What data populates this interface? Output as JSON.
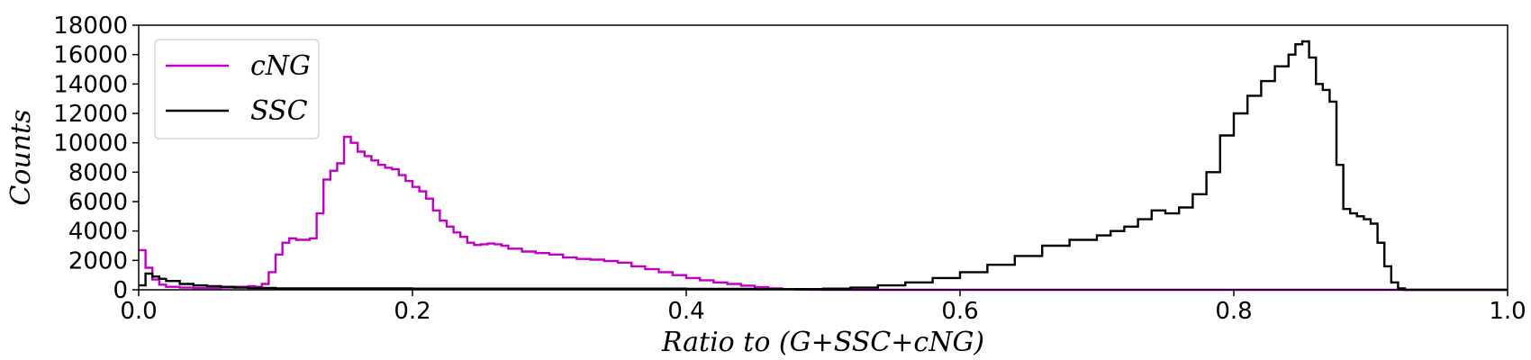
{
  "chart_data": {
    "type": "line",
    "style": "step histogram",
    "xlabel": "Ratio  to  (G+SSC+cNG)",
    "ylabel": "Counts",
    "xlim": [
      0.0,
      1.0
    ],
    "ylim": [
      0,
      18000
    ],
    "xticks": [
      0.0,
      0.2,
      0.4,
      0.6,
      0.8,
      1.0
    ],
    "xtick_labels": [
      "0.0",
      "0.2",
      "0.4",
      "0.6",
      "0.8",
      "1.0"
    ],
    "yticks": [
      0,
      2000,
      4000,
      6000,
      8000,
      10000,
      12000,
      14000,
      16000,
      18000
    ],
    "ytick_labels": [
      "0",
      "2000",
      "4000",
      "6000",
      "8000",
      "10000",
      "12000",
      "14000",
      "16000",
      "18000"
    ],
    "grid": false,
    "legend_position": "top-left",
    "series": [
      {
        "name": "cNG",
        "color": "#c000c8",
        "points": [
          [
            0.0,
            2700
          ],
          [
            0.005,
            1500
          ],
          [
            0.01,
            700
          ],
          [
            0.015,
            350
          ],
          [
            0.02,
            200
          ],
          [
            0.03,
            150
          ],
          [
            0.04,
            120
          ],
          [
            0.05,
            120
          ],
          [
            0.06,
            150
          ],
          [
            0.07,
            200
          ],
          [
            0.08,
            250
          ],
          [
            0.085,
            200
          ],
          [
            0.09,
            400
          ],
          [
            0.095,
            1200
          ],
          [
            0.1,
            2400
          ],
          [
            0.105,
            3200
          ],
          [
            0.11,
            3500
          ],
          [
            0.115,
            3400
          ],
          [
            0.12,
            3400
          ],
          [
            0.125,
            3500
          ],
          [
            0.13,
            5200
          ],
          [
            0.135,
            7500
          ],
          [
            0.14,
            8100
          ],
          [
            0.145,
            8600
          ],
          [
            0.15,
            10400
          ],
          [
            0.155,
            10000
          ],
          [
            0.16,
            9400
          ],
          [
            0.165,
            9100
          ],
          [
            0.17,
            8800
          ],
          [
            0.175,
            8500
          ],
          [
            0.18,
            8300
          ],
          [
            0.185,
            8200
          ],
          [
            0.19,
            7800
          ],
          [
            0.195,
            7400
          ],
          [
            0.2,
            7000
          ],
          [
            0.205,
            6700
          ],
          [
            0.21,
            6200
          ],
          [
            0.215,
            5400
          ],
          [
            0.22,
            4700
          ],
          [
            0.225,
            4300
          ],
          [
            0.23,
            3900
          ],
          [
            0.235,
            3600
          ],
          [
            0.24,
            3200
          ],
          [
            0.245,
            3050
          ],
          [
            0.25,
            3100
          ],
          [
            0.255,
            3150
          ],
          [
            0.26,
            3100
          ],
          [
            0.265,
            3000
          ],
          [
            0.27,
            2800
          ],
          [
            0.28,
            2600
          ],
          [
            0.29,
            2500
          ],
          [
            0.3,
            2400
          ],
          [
            0.31,
            2200
          ],
          [
            0.32,
            2100
          ],
          [
            0.33,
            2050
          ],
          [
            0.34,
            1950
          ],
          [
            0.35,
            1850
          ],
          [
            0.36,
            1600
          ],
          [
            0.37,
            1400
          ],
          [
            0.38,
            1200
          ],
          [
            0.39,
            1000
          ],
          [
            0.4,
            800
          ],
          [
            0.41,
            650
          ],
          [
            0.42,
            500
          ],
          [
            0.43,
            400
          ],
          [
            0.44,
            280
          ],
          [
            0.45,
            180
          ],
          [
            0.46,
            100
          ],
          [
            0.47,
            50
          ],
          [
            0.48,
            20
          ],
          [
            0.49,
            5
          ],
          [
            0.5,
            0
          ],
          [
            1.0,
            0
          ]
        ]
      },
      {
        "name": "SSC",
        "color": "#000000",
        "points": [
          [
            0.0,
            300
          ],
          [
            0.005,
            1100
          ],
          [
            0.01,
            900
          ],
          [
            0.015,
            750
          ],
          [
            0.02,
            600
          ],
          [
            0.03,
            400
          ],
          [
            0.04,
            300
          ],
          [
            0.05,
            250
          ],
          [
            0.06,
            200
          ],
          [
            0.07,
            150
          ],
          [
            0.08,
            120
          ],
          [
            0.1,
            100
          ],
          [
            0.2,
            80
          ],
          [
            0.3,
            80
          ],
          [
            0.4,
            60
          ],
          [
            0.45,
            40
          ],
          [
            0.48,
            50
          ],
          [
            0.5,
            80
          ],
          [
            0.52,
            150
          ],
          [
            0.54,
            300
          ],
          [
            0.56,
            500
          ],
          [
            0.58,
            800
          ],
          [
            0.6,
            1200
          ],
          [
            0.62,
            1700
          ],
          [
            0.64,
            2300
          ],
          [
            0.66,
            3000
          ],
          [
            0.68,
            3400
          ],
          [
            0.7,
            3700
          ],
          [
            0.71,
            4000
          ],
          [
            0.72,
            4300
          ],
          [
            0.73,
            4800
          ],
          [
            0.74,
            5400
          ],
          [
            0.75,
            5200
          ],
          [
            0.76,
            5600
          ],
          [
            0.77,
            6500
          ],
          [
            0.78,
            8000
          ],
          [
            0.79,
            10500
          ],
          [
            0.8,
            12000
          ],
          [
            0.81,
            13200
          ],
          [
            0.82,
            14200
          ],
          [
            0.83,
            15200
          ],
          [
            0.84,
            16000
          ],
          [
            0.845,
            16700
          ],
          [
            0.85,
            16900
          ],
          [
            0.855,
            15800
          ],
          [
            0.86,
            14000
          ],
          [
            0.865,
            13600
          ],
          [
            0.87,
            12800
          ],
          [
            0.875,
            8500
          ],
          [
            0.88,
            5500
          ],
          [
            0.885,
            5200
          ],
          [
            0.89,
            5000
          ],
          [
            0.895,
            4800
          ],
          [
            0.9,
            4500
          ],
          [
            0.905,
            3200
          ],
          [
            0.91,
            1600
          ],
          [
            0.915,
            500
          ],
          [
            0.92,
            100
          ],
          [
            0.925,
            0
          ],
          [
            1.0,
            0
          ]
        ]
      }
    ]
  }
}
